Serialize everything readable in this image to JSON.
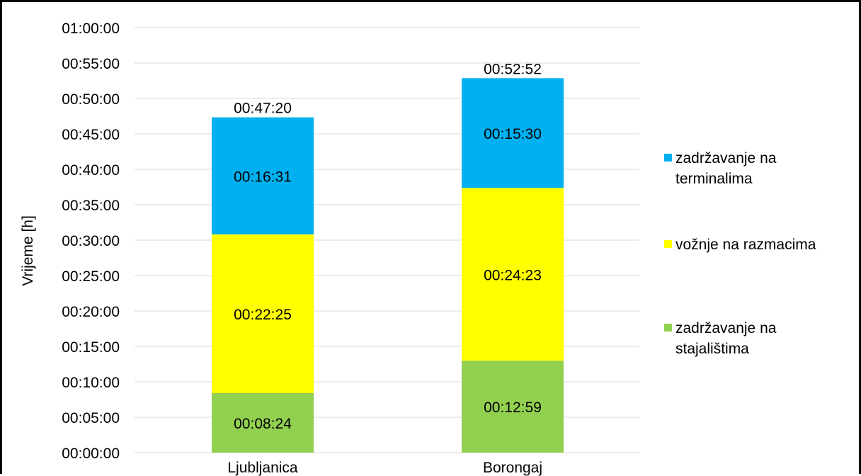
{
  "chart_data": {
    "type": "bar",
    "stacked": true,
    "title": "",
    "xlabel": "",
    "ylabel": "Vrijeme [h]",
    "ylim": [
      "00:00:00",
      "01:00:00"
    ],
    "y_ticks": [
      "00:00:00",
      "00:05:00",
      "00:10:00",
      "00:15:00",
      "00:20:00",
      "00:25:00",
      "00:30:00",
      "00:35:00",
      "00:40:00",
      "00:45:00",
      "00:50:00",
      "00:55:00",
      "01:00:00"
    ],
    "grid": true,
    "legend_position": "right",
    "categories": [
      "Ljubljanica",
      "Borongaj"
    ],
    "series": [
      {
        "name": "zadržavanje na stajalištima",
        "color": "#92D050",
        "values": [
          "00:08:24",
          "00:12:59"
        ]
      },
      {
        "name": "vožnje na razmacima",
        "color": "#FFFF00",
        "values": [
          "00:22:25",
          "00:24:23"
        ]
      },
      {
        "name": "zadržavanje na terminalima",
        "color": "#00B0F0",
        "values": [
          "00:16:31",
          "00:15:30"
        ]
      }
    ],
    "totals": [
      "00:47:20",
      "00:52:52"
    ],
    "legend": [
      {
        "lines": [
          "zadržavanje na",
          "terminalima"
        ],
        "color": "#00B0F0"
      },
      {
        "lines": [
          "vožnje na razmacima"
        ],
        "color": "#FFFF00"
      },
      {
        "lines": [
          "zadržavanje na",
          "stajalištima"
        ],
        "color": "#92D050"
      }
    ]
  }
}
